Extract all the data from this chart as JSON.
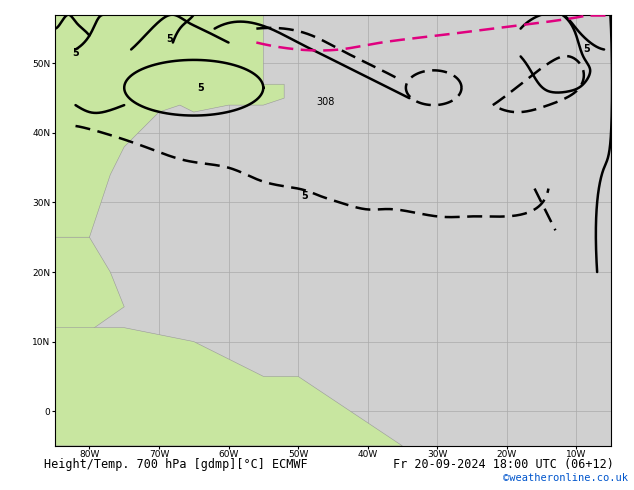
{
  "title": "Height/Temp. 700 hPa [gdmp][°C] ECMWF",
  "date_label": "Fr 20-09-2024 18:00 UTC (06+12)",
  "watermark": "©weatheronline.co.uk",
  "figsize": [
    6.34,
    4.9
  ],
  "dpi": 100,
  "lon_min": -85,
  "lon_max": -5,
  "lat_min": -5,
  "lat_max": 57,
  "land_color": "#c8e6a0",
  "ocean_color": "#d0d0d0",
  "grid_color": "#aaaaaa",
  "border_color": "#999999",
  "title_fontsize": 8.5,
  "watermark_color": "#0055cc",
  "watermark_fontsize": 7.5,
  "grid_lons": [
    -80,
    -70,
    -60,
    -50,
    -40,
    -30,
    -20,
    -10
  ],
  "grid_lats": [
    0,
    10,
    20,
    30,
    40,
    50
  ],
  "tick_labels_lon": [
    "80W",
    "70W",
    "60W",
    "50W",
    "40W",
    "30W",
    "20W",
    "10W"
  ],
  "tick_labels_lat": [
    "0",
    "10N",
    "20N",
    "30N",
    "40N",
    "50N"
  ]
}
